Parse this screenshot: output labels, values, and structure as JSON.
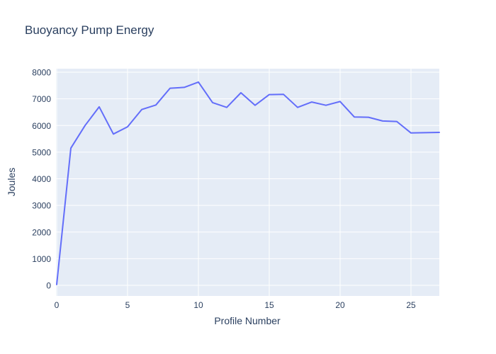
{
  "title": "Buoyancy Pump Energy",
  "colors": {
    "line": "#636efa",
    "plot_bg": "#e5ecf6",
    "grid": "#ffffff",
    "text": "#2a3f5f",
    "paper": "#ffffff"
  },
  "chart_data": {
    "type": "line",
    "title": "Buoyancy Pump Energy",
    "xlabel": "Profile Number",
    "ylabel": "Joules",
    "x": [
      0,
      1,
      2,
      3,
      4,
      5,
      6,
      7,
      8,
      9,
      10,
      11,
      12,
      13,
      14,
      15,
      16,
      17,
      18,
      19,
      20,
      21,
      22,
      23,
      24,
      25,
      26,
      27
    ],
    "y": [
      30,
      5150,
      6000,
      6700,
      5680,
      5950,
      6600,
      6770,
      7400,
      7430,
      7630,
      6860,
      6680,
      7230,
      6760,
      7160,
      7170,
      6680,
      6880,
      6760,
      6900,
      6320,
      6310,
      6170,
      6150,
      5720,
      5730,
      5740
    ],
    "x_ticks": [
      0,
      5,
      10,
      15,
      20,
      25
    ],
    "y_ticks": [
      0,
      1000,
      2000,
      3000,
      4000,
      5000,
      6000,
      7000,
      8000
    ],
    "xlim": [
      0,
      27
    ],
    "ylim": [
      0,
      8000
    ],
    "grid": true,
    "legend": "none"
  }
}
